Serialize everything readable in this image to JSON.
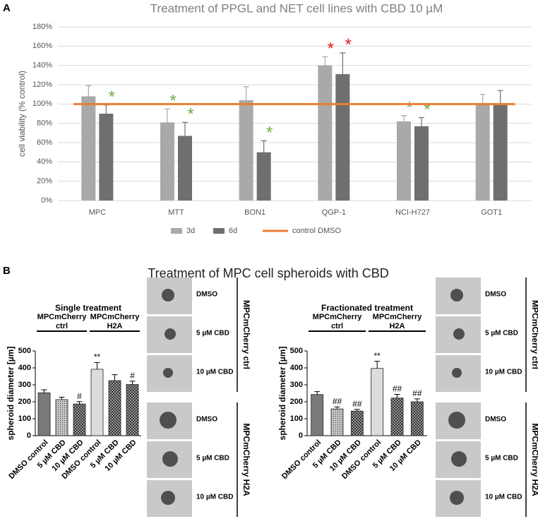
{
  "panel_labels": [
    "A",
    "B"
  ],
  "figure_b_title": "Treatment of MPC cell spheroids with CBD",
  "chart_data": [
    {
      "type": "bar",
      "title": "Treatment of PPGL and NET cell lines with CBD 10 µM",
      "y_label": "cell viability (% control)",
      "categories": [
        "MPC",
        "MTT",
        "BON1",
        "QGP-1",
        "NCI-H727",
        "GOT1"
      ],
      "series": [
        {
          "name": "3d",
          "color": "#a9a9a9",
          "values": [
            108,
            81,
            104,
            140,
            82,
            100
          ],
          "errors": [
            11,
            14,
            14,
            9,
            6,
            10
          ],
          "marks": [
            null,
            "*",
            null,
            "*",
            "*",
            null
          ],
          "mark_colors": [
            null,
            "#70ad47",
            null,
            "#e02020",
            "#70ad47",
            null
          ]
        },
        {
          "name": "6d",
          "color": "#6f6f6f",
          "values": [
            90,
            67,
            50,
            131,
            77,
            99
          ],
          "errors": [
            9,
            14,
            12,
            22,
            9,
            15
          ],
          "marks": [
            "*",
            "*",
            "*",
            "*",
            "*",
            null
          ],
          "mark_colors": [
            "#70ad47",
            "#70ad47",
            "#70ad47",
            "#e02020",
            "#70ad47",
            null
          ]
        }
      ],
      "reference_line": {
        "name": "control DMSO",
        "value": 100,
        "color": "#ed7d31"
      },
      "ylim": [
        0,
        180
      ],
      "yticks": [
        {
          "value": 0,
          "label": "0%"
        },
        {
          "value": 20,
          "label": "20%"
        },
        {
          "value": 40,
          "label": "40%"
        },
        {
          "value": 60,
          "label": "60%"
        },
        {
          "value": 80,
          "label": "80%"
        },
        {
          "value": 100,
          "label": "100%"
        },
        {
          "value": 120,
          "label": "120%"
        },
        {
          "value": 140,
          "label": "140%"
        },
        {
          "value": 160,
          "label": "160%"
        },
        {
          "value": 180,
          "label": "180%"
        }
      ],
      "grid": true,
      "legend": "bottom"
    },
    {
      "type": "bar",
      "title": "Single treatment",
      "y_label": "spheroid diameter [µm]",
      "categories": [
        "DMSO control",
        "5 µM CBD",
        "10 µM CBD",
        "DMSO control",
        "5 µM CBD",
        "10 µM CBD"
      ],
      "values": [
        253,
        213,
        187,
        392,
        325,
        302
      ],
      "errors": [
        18,
        14,
        14,
        40,
        35,
        20
      ],
      "value_labels": [
        null,
        null,
        "#",
        "**",
        null,
        "#"
      ],
      "colors": [
        "#7a7a7a",
        "#b5b5b5",
        "#4a4a4a",
        "#dcdcdc",
        "#8a8a8a",
        "#6a6a6a"
      ],
      "patterns": [
        "solid",
        "dots",
        "checker",
        "solid",
        "checker",
        "checker"
      ],
      "groups": [
        {
          "label_lines": [
            "MPCmCherry",
            "ctrl"
          ]
        },
        {
          "label_lines": [
            "MPCmCherry",
            "H2A"
          ]
        }
      ],
      "ylim": [
        0,
        500
      ],
      "yticks": [
        0,
        100,
        200,
        300,
        400,
        500
      ],
      "images": {
        "labels": [
          "DMSO",
          "5 µM CBD",
          "10 µM CBD",
          "DMSO",
          "5 µM CBD",
          "10 µM CBD"
        ],
        "group_labels": [
          "MPCmCherry ctrl",
          "MPCmCherry H2A"
        ]
      }
    },
    {
      "type": "bar",
      "title": "Fractionated treatment",
      "y_label": "spheroid diameter [µm]",
      "categories": [
        "DMSO control",
        "5 µM CBD",
        "10 µM CBD",
        "DMSO control",
        "5 µM CBD",
        "10 µM CBD"
      ],
      "values": [
        243,
        158,
        145,
        397,
        222,
        200
      ],
      "errors": [
        17,
        12,
        10,
        42,
        22,
        17
      ],
      "value_labels": [
        null,
        "##",
        "##",
        "**",
        "##",
        "##"
      ],
      "colors": [
        "#7a7a7a",
        "#b5b5b5",
        "#4a4a4a",
        "#dcdcdc",
        "#8a8a8a",
        "#6a6a6a"
      ],
      "patterns": [
        "solid",
        "dots",
        "checker",
        "solid",
        "checker",
        "checker"
      ],
      "groups": [
        {
          "label_lines": [
            "MPCmCherry",
            "ctrl"
          ]
        },
        {
          "label_lines": [
            "MPCmCherry",
            "H2A"
          ]
        }
      ],
      "ylim": [
        0,
        500
      ],
      "yticks": [
        0,
        100,
        200,
        300,
        400,
        500
      ],
      "images": {
        "labels": [
          "DMSO",
          "5 µM CBD",
          "10 µM CBD",
          "DMSO",
          "5 µM CBD",
          "10 µM CBD"
        ],
        "group_labels": [
          "MPCmCherry ctrl",
          "MPCmCherry H2A"
        ]
      }
    }
  ]
}
